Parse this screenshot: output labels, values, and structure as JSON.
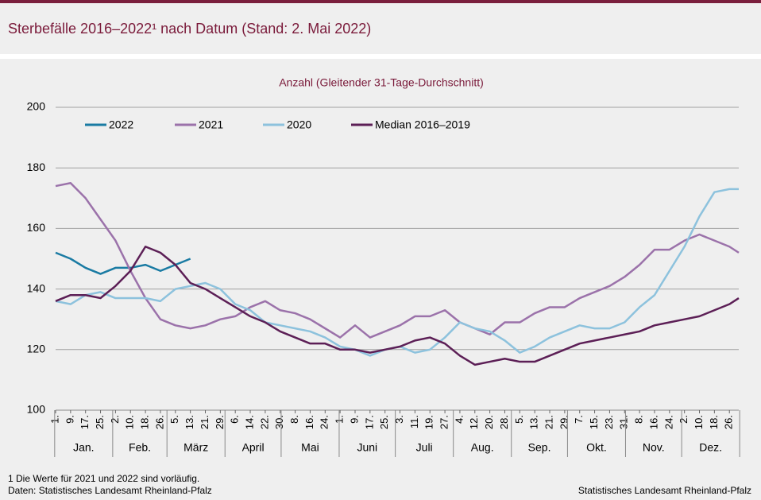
{
  "page": {
    "title": "Sterbefälle 2016–2022¹ nach Datum (Stand: 2. Mai 2022)",
    "footnote": "1 Die Werte für 2021 und 2022 sind vorläufig.",
    "data_source": "Daten: Statistisches Landesamt Rheinland-Pfalz",
    "publisher": "Statistisches Landesamt Rheinland-Pfalz"
  },
  "chart_data": {
    "type": "line",
    "subtitle": "Anzahl (Gleitender 31-Tage-Durchschnitt)",
    "legend": "upper left",
    "grid": true,
    "xlim": [
      1,
      366
    ],
    "ylim": [
      100,
      200
    ],
    "yticks": [
      100,
      120,
      140,
      160,
      180,
      200
    ],
    "xticks": [
      {
        "value": 1,
        "label": "1."
      },
      {
        "value": 9,
        "label": "9."
      },
      {
        "value": 17,
        "label": "17."
      },
      {
        "value": 25,
        "label": "25."
      },
      {
        "value": 33,
        "label": "2."
      },
      {
        "value": 41,
        "label": "10."
      },
      {
        "value": 49,
        "label": "18."
      },
      {
        "value": 57,
        "label": "26."
      },
      {
        "value": 65,
        "label": "5."
      },
      {
        "value": 73,
        "label": "13."
      },
      {
        "value": 81,
        "label": "21."
      },
      {
        "value": 89,
        "label": "29."
      },
      {
        "value": 97,
        "label": "6."
      },
      {
        "value": 105,
        "label": "14."
      },
      {
        "value": 113,
        "label": "22."
      },
      {
        "value": 121,
        "label": "30."
      },
      {
        "value": 129,
        "label": "8."
      },
      {
        "value": 137,
        "label": "16."
      },
      {
        "value": 145,
        "label": "24."
      },
      {
        "value": 153,
        "label": "1."
      },
      {
        "value": 161,
        "label": "9."
      },
      {
        "value": 169,
        "label": "17."
      },
      {
        "value": 177,
        "label": "25."
      },
      {
        "value": 185,
        "label": "3."
      },
      {
        "value": 193,
        "label": "11."
      },
      {
        "value": 201,
        "label": "19."
      },
      {
        "value": 209,
        "label": "27."
      },
      {
        "value": 217,
        "label": "4."
      },
      {
        "value": 225,
        "label": "12."
      },
      {
        "value": 233,
        "label": "20."
      },
      {
        "value": 241,
        "label": "28."
      },
      {
        "value": 249,
        "label": "5."
      },
      {
        "value": 257,
        "label": "13."
      },
      {
        "value": 265,
        "label": "21."
      },
      {
        "value": 273,
        "label": "29."
      },
      {
        "value": 281,
        "label": "7."
      },
      {
        "value": 289,
        "label": "15."
      },
      {
        "value": 297,
        "label": "23."
      },
      {
        "value": 305,
        "label": "31."
      },
      {
        "value": 313,
        "label": "8."
      },
      {
        "value": 321,
        "label": "16."
      },
      {
        "value": 329,
        "label": "24."
      },
      {
        "value": 337,
        "label": "2."
      },
      {
        "value": 345,
        "label": "10."
      },
      {
        "value": 353,
        "label": "18."
      },
      {
        "value": 361,
        "label": "26."
      }
    ],
    "x_groups": [
      {
        "label": "Jan.",
        "from": 1,
        "to": 31
      },
      {
        "label": "Feb.",
        "from": 32,
        "to": 60
      },
      {
        "label": "März",
        "from": 61,
        "to": 91
      },
      {
        "label": "April",
        "from": 92,
        "to": 121
      },
      {
        "label": "Mai",
        "from": 122,
        "to": 152
      },
      {
        "label": "Juni",
        "from": 153,
        "to": 182
      },
      {
        "label": "Juli",
        "from": 183,
        "to": 213
      },
      {
        "label": "Aug.",
        "from": 214,
        "to": 244
      },
      {
        "label": "Sep.",
        "from": 245,
        "to": 274
      },
      {
        "label": "Okt.",
        "from": 275,
        "to": 305
      },
      {
        "label": "Nov.",
        "from": 306,
        "to": 335
      },
      {
        "label": "Dez.",
        "from": 336,
        "to": 366
      }
    ],
    "x": [
      1,
      9,
      17,
      25,
      33,
      41,
      49,
      57,
      65,
      73,
      81,
      89,
      97,
      105,
      113,
      121,
      129,
      137,
      145,
      153,
      161,
      169,
      177,
      185,
      193,
      201,
      209,
      217,
      225,
      233,
      241,
      249,
      257,
      265,
      273,
      281,
      289,
      297,
      305,
      313,
      321,
      329,
      337,
      345,
      353,
      361,
      366
    ],
    "series": [
      {
        "name": "2022",
        "color": "#1a7ba3",
        "values": [
          152,
          150,
          147,
          145,
          147,
          147,
          148,
          146,
          148,
          150,
          null,
          null,
          null,
          null,
          null,
          null,
          null,
          null,
          null,
          null,
          null,
          null,
          null,
          null,
          null,
          null,
          null,
          null,
          null,
          null,
          null,
          null,
          null,
          null,
          null,
          null,
          null,
          null,
          null,
          null,
          null,
          null,
          null,
          null,
          null,
          null,
          null
        ]
      },
      {
        "name": "2021",
        "color": "#9b72aa",
        "values": [
          174,
          175,
          170,
          163,
          156,
          146,
          137,
          130,
          128,
          127,
          128,
          130,
          131,
          134,
          136,
          133,
          132,
          130,
          127,
          124,
          128,
          124,
          126,
          128,
          131,
          131,
          133,
          129,
          127,
          125,
          129,
          129,
          132,
          134,
          134,
          137,
          139,
          141,
          144,
          148,
          153,
          153,
          156,
          158,
          156,
          154,
          152
        ]
      },
      {
        "name": "2020",
        "color": "#8dc2dd",
        "values": [
          136,
          135,
          138,
          139,
          137,
          137,
          137,
          136,
          140,
          141,
          142,
          140,
          135,
          133,
          129,
          128,
          127,
          126,
          124,
          121,
          120,
          118,
          120,
          121,
          119,
          120,
          124,
          129,
          127,
          126,
          123,
          119,
          121,
          124,
          126,
          128,
          127,
          127,
          129,
          134,
          138,
          146,
          154,
          164,
          172,
          173,
          173
        ]
      },
      {
        "name": "Median 2016–2019",
        "color": "#5c1f56",
        "values": [
          136,
          138,
          138,
          137,
          141,
          146,
          154,
          152,
          148,
          142,
          140,
          137,
          134,
          131,
          129,
          126,
          124,
          122,
          122,
          120,
          120,
          119,
          120,
          121,
          123,
          124,
          122,
          118,
          115,
          116,
          117,
          116,
          116,
          118,
          120,
          122,
          123,
          124,
          125,
          126,
          128,
          129,
          130,
          131,
          133,
          135,
          137
        ]
      }
    ]
  }
}
